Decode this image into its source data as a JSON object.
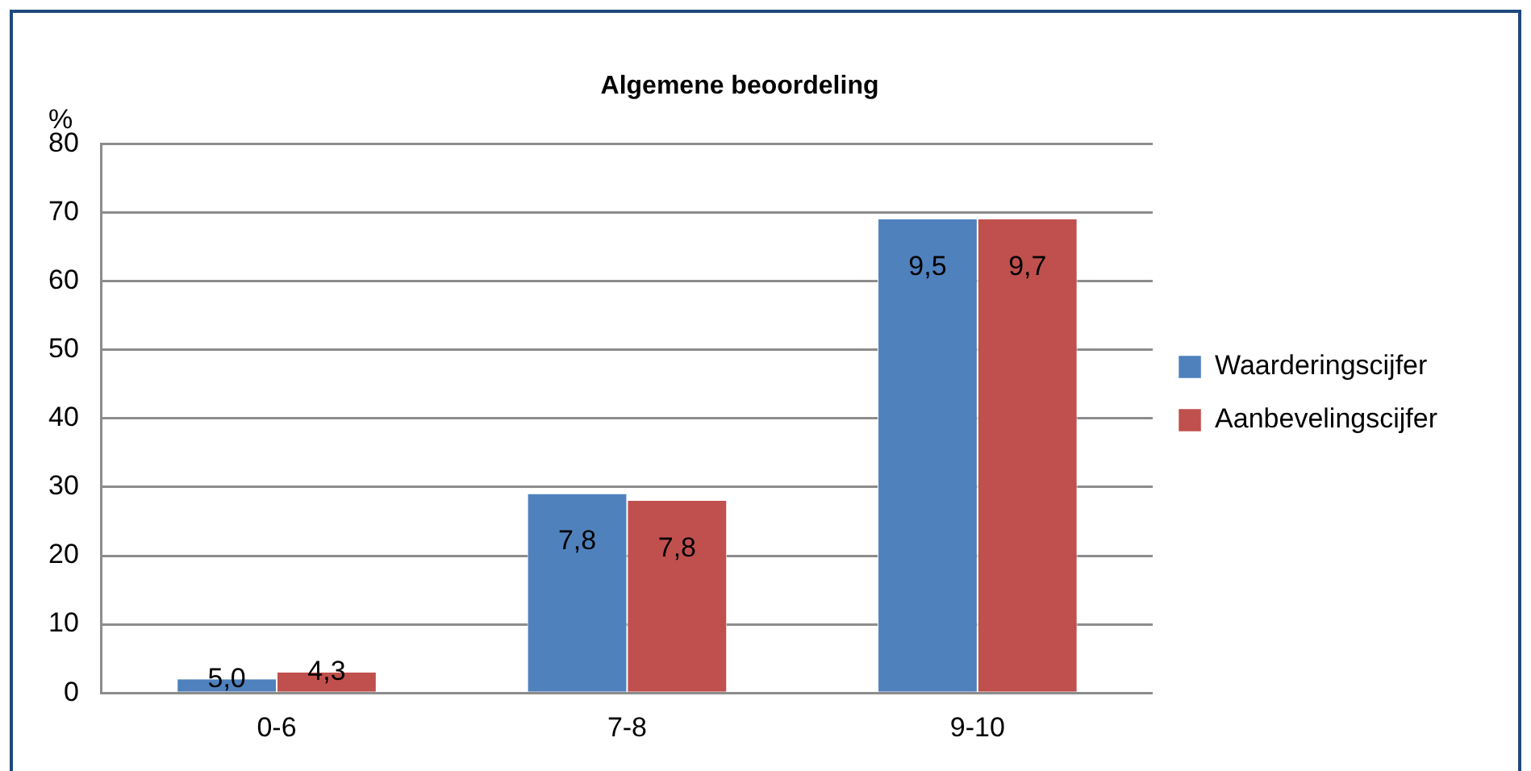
{
  "chart_data": {
    "type": "bar",
    "title": "Algemene beoordeling",
    "ylabel": "%",
    "categories": [
      "0-6",
      "7-8",
      "9-10"
    ],
    "series": [
      {
        "name": "Waarderingscijfer",
        "color": "#4f81bd",
        "values": [
          2,
          29,
          69
        ]
      },
      {
        "name": "Aanbevelingscijfer",
        "color": "#c0504d",
        "values": [
          3,
          28,
          69
        ]
      }
    ],
    "annotations": [
      {
        "text": "5,0",
        "x": "0-6",
        "y": 2
      },
      {
        "text": "4,3",
        "x": "0-6",
        "y": 3
      },
      {
        "text": "7,8",
        "x": "7-8",
        "y": 22
      },
      {
        "text": "7,8",
        "x": "7-8",
        "y": 21
      },
      {
        "text": "9,5",
        "x": "9-10",
        "y": 62
      },
      {
        "text": "9,7",
        "x": "9-10",
        "y": 62
      }
    ],
    "ylim": [
      0,
      80
    ],
    "yticks": [
      0,
      10,
      20,
      30,
      40,
      50,
      60,
      70,
      80
    ],
    "grid": "y",
    "legend": "right"
  }
}
